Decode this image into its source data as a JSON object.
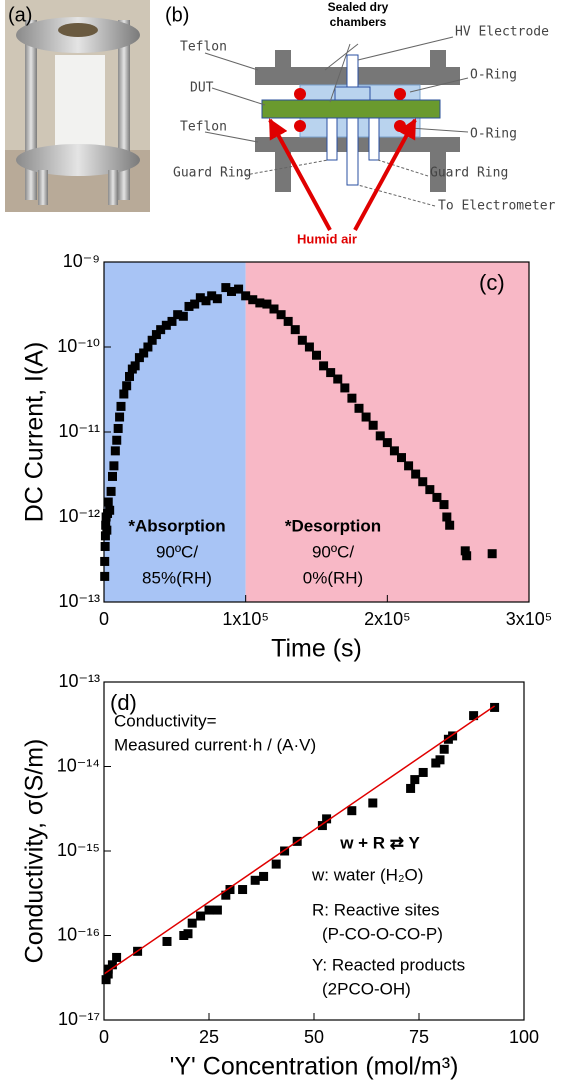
{
  "photo": {
    "label": "(a)"
  },
  "diagram": {
    "label": "(b)",
    "sealed": [
      "Sealed dry",
      "chambers"
    ],
    "hv": "HV Electrode",
    "teflon_top": "Teflon",
    "oring_top": "O-Ring",
    "dut": "DUT",
    "teflon_bottom": "Teflon",
    "oring_bottom": "O-Ring",
    "guard_left": "Guard Ring",
    "guard_right": "Guard Ring",
    "electrometer": "To Electrometer",
    "humid": "Humid air"
  },
  "chart_data": [
    {
      "type": "scatter",
      "panel": "(c)",
      "ylabel": "DC Current, I(A)",
      "xlabel": "Time (s)",
      "log_y": true,
      "color": "#000000",
      "annotations": [
        "*Absorption",
        "90ºC/",
        "85%(RH)",
        "*Desorption",
        "90ºC/",
        "0%(RH)"
      ],
      "spans": [
        {
          "from": 0,
          "to": 100000,
          "color": "#a8c4f5"
        },
        {
          "from": 100000,
          "to": 300000,
          "color": "#f8b8c6"
        }
      ],
      "xlim": [
        0,
        300000
      ],
      "ylim": [
        1e-13,
        1e-09
      ],
      "xticks": [
        0,
        {
          "value": 100000,
          "label": "1x10⁵"
        },
        {
          "value": 200000,
          "label": "2x10⁵"
        },
        {
          "value": 300000,
          "label": "3x10⁵"
        }
      ],
      "yticks": [
        {
          "value": 1e-13,
          "label": "10⁻¹³"
        },
        {
          "value": 1e-12,
          "label": "10⁻¹²"
        },
        {
          "value": 1e-11,
          "label": "10⁻¹¹"
        },
        {
          "value": 1e-10,
          "label": "10⁻¹⁰"
        },
        {
          "value": 1e-09,
          "label": "10⁻⁹"
        }
      ],
      "series": [
        {
          "style": "points",
          "color": "#000000",
          "x": [
            500,
            500,
            800,
            1000,
            1200,
            1500,
            2000,
            2500,
            3000,
            4000,
            5000,
            6000,
            7000,
            8000,
            9000,
            10000,
            11000,
            12000,
            14000,
            16000,
            18000,
            20000,
            22000,
            25000,
            28000,
            31000,
            34000,
            37000,
            40000,
            44000,
            48000,
            52000,
            56000,
            60000,
            64000,
            68000,
            72000,
            76000,
            80000,
            86000,
            90000,
            95000,
            100000,
            105000,
            110000,
            115000,
            120000,
            125000,
            130000,
            135000,
            140000,
            145000,
            150000,
            155000,
            160000,
            165000,
            170000,
            175000,
            180000,
            185000,
            190000,
            195000,
            200000,
            205000,
            210000,
            215000,
            220000,
            225000,
            230000,
            235000,
            240000,
            242000,
            244000,
            255000,
            256000,
            274000
          ],
          "values": [
            2e-13,
            3e-13,
            4.5e-13,
            6e-13,
            8e-13,
            1e-12,
            7e-13,
            1.1e-12,
            1.5e-12,
            1.2e-12,
            2e-12,
            3e-12,
            4e-12,
            6e-12,
            8e-12,
            1.1e-11,
            1.5e-11,
            2e-11,
            2.8e-11,
            3.5e-11,
            4.5e-11,
            5.5e-11,
            6e-11,
            7.5e-11,
            8.5e-11,
            1e-10,
            1.2e-10,
            1.4e-10,
            1.6e-10,
            1.8e-10,
            2e-10,
            2.4e-10,
            2.3e-10,
            3e-10,
            3.2e-10,
            3.8e-10,
            3.5e-10,
            4e-10,
            3.7e-10,
            5e-10,
            4.5e-10,
            4.8e-10,
            4e-10,
            3.6e-10,
            3.3e-10,
            3.2e-10,
            2.8e-10,
            2.4e-10,
            2e-10,
            1.6e-10,
            1.2e-10,
            1e-10,
            8e-11,
            6e-11,
            5e-11,
            4.2e-11,
            3.3e-11,
            2.5e-11,
            1.9e-11,
            1.5e-11,
            1.2e-11,
            9e-12,
            7.5e-12,
            6e-12,
            5e-12,
            4e-12,
            3.2e-12,
            2.6e-12,
            2.1e-12,
            1.7e-12,
            1.4e-12,
            1e-12,
            8e-13,
            4e-13,
            3.5e-13,
            3.7e-13
          ]
        }
      ]
    },
    {
      "type": "scatter",
      "panel": "(d)",
      "ylabel": "Conductivity, σ(S/m)",
      "xlabel": "'Y' Concentration (mol/m³)",
      "log_y": true,
      "color": "#000000",
      "annotations": [
        "Conductivity=",
        "Measured current·h / (A·V)",
        "w  +  R ⇄ Y",
        "w: water (H₂O)",
        "R: Reactive sites",
        "(P-CO-O-CO-P)",
        "Y: Reacted products",
        "(2PCO-OH)"
      ],
      "xlim": [
        0,
        100
      ],
      "ylim": [
        1e-17,
        1e-13
      ],
      "xticks": [
        0,
        25,
        50,
        75,
        100
      ],
      "yticks": [
        {
          "value": 1e-17,
          "label": "10⁻¹⁷"
        },
        {
          "value": 1e-16,
          "label": "10⁻¹⁶"
        },
        {
          "value": 1e-15,
          "label": "10⁻¹⁵"
        },
        {
          "value": 1e-14,
          "label": "10⁻¹⁴"
        },
        {
          "value": 1e-13,
          "label": "10⁻¹³"
        }
      ],
      "series": [
        {
          "style": "points",
          "color": "#000000",
          "x": [
            0.5,
            1,
            1,
            2,
            3,
            8,
            15,
            19,
            20,
            21,
            23,
            25,
            27,
            29,
            30,
            33,
            36,
            38,
            41,
            43,
            46,
            52,
            53,
            59,
            64,
            73,
            74,
            76,
            79,
            80,
            81,
            82,
            83,
            88,
            93
          ],
          "values": [
            3e-17,
            4e-17,
            3.5e-17,
            4.5e-17,
            5.5e-17,
            6.5e-17,
            8.5e-17,
            1e-16,
            1.05e-16,
            1.4e-16,
            1.7e-16,
            2e-16,
            2e-16,
            3e-16,
            3.5e-16,
            3.5e-16,
            4.5e-16,
            5e-16,
            7e-16,
            1e-15,
            1.3e-15,
            2e-15,
            2.4e-15,
            3e-15,
            3.7e-15,
            5.5e-15,
            7e-15,
            8.5e-15,
            1.1e-14,
            1.2e-14,
            1.6e-14,
            2.1e-14,
            2.3e-14,
            4e-14,
            5e-14
          ]
        },
        {
          "style": "line",
          "color": "#e00000",
          "x": [
            0,
            93
          ],
          "values": [
            3.5e-17,
            5.2e-14
          ]
        }
      ]
    }
  ]
}
